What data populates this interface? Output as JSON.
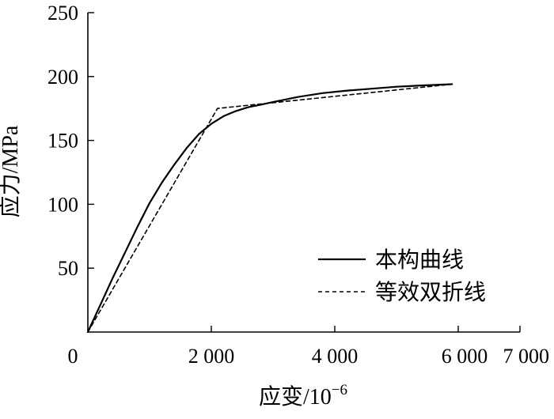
{
  "chart_data": {
    "type": "line",
    "title": "",
    "xlabel": "应变/10",
    "xlabel_exponent": "−6",
    "ylabel": "应力/MPa",
    "xlim": [
      0,
      7000
    ],
    "ylim": [
      0,
      250
    ],
    "x_ticks": [
      0,
      2000,
      4000,
      6000,
      7000
    ],
    "x_tick_labels": [
      "0",
      "2 000",
      "4 000",
      "6 000",
      "7 000"
    ],
    "y_ticks": [
      50,
      100,
      150,
      200,
      250
    ],
    "y_tick_labels": [
      "50",
      "100",
      "150",
      "200",
      "250"
    ],
    "grid": false,
    "legend_position": "lower-right",
    "series": [
      {
        "name": "本构曲线",
        "style": "solid",
        "x": [
          0,
          200,
          400,
          600,
          800,
          1000,
          1200,
          1400,
          1600,
          1800,
          2000,
          2200,
          2400,
          2600,
          2800,
          3000,
          3400,
          3800,
          4200,
          4600,
          5000,
          5400,
          5900
        ],
        "y": [
          0,
          21,
          42,
          62,
          82,
          101,
          117,
          131,
          144,
          155,
          163,
          169,
          173,
          176,
          178,
          180,
          184,
          187,
          189,
          190.5,
          192,
          193,
          194
        ]
      },
      {
        "name": "等效双折线",
        "style": "dashed",
        "x": [
          0,
          2100,
          5900
        ],
        "y": [
          0,
          175,
          194
        ]
      }
    ]
  }
}
